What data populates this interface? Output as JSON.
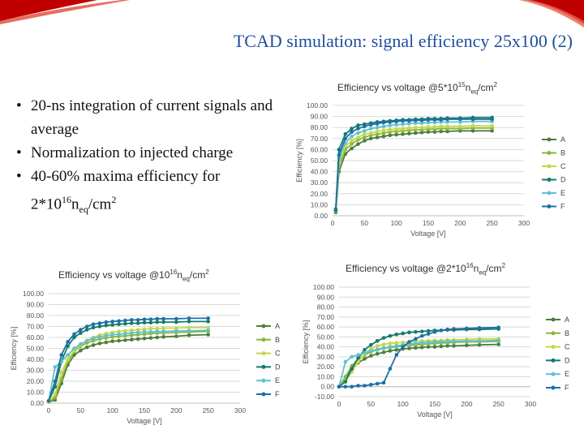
{
  "slide": {
    "title": "TCAD simulation: signal efficiency 25x100 (2)",
    "bullets": [
      {
        "pre": "20-ns integration of current signals and average",
        "exp": "",
        "sub": "",
        "post": ""
      },
      {
        "pre": "Normalization to injected charge",
        "exp": "",
        "sub": "",
        "post": ""
      },
      {
        "pre": "40-60% maxima efficiency for",
        "br": true,
        "pre2": "2*10",
        "exp": "16",
        "mid": "n",
        "sub": "eq",
        "post": "/cm",
        "exp2": "2"
      }
    ]
  },
  "colors": {
    "A": "#4e7d3a",
    "B": "#8db63a",
    "C": "#c5d84a",
    "D": "#137a6e",
    "E": "#5fc1d1",
    "F": "#1f6fa5"
  },
  "chart_data": [
    {
      "type": "line",
      "title": {
        "pre": "Efficiency vs voltage @5*10",
        "exp": "15",
        "mid": "n",
        "sub": "eq",
        "post": "/cm",
        "exp2": "2"
      },
      "xlabel": "Voltage [V]",
      "ylabel": "Efficiency [%]",
      "xlim": [
        0,
        300
      ],
      "ylim": [
        0,
        100
      ],
      "xticks": [
        "0",
        "50",
        "100",
        "150",
        "200",
        "250",
        "300"
      ],
      "yticks": [
        "0.00",
        "10.00",
        "20.00",
        "30.00",
        "40.00",
        "50.00",
        "60.00",
        "70.00",
        "80.00",
        "90.00",
        "100.00"
      ],
      "x": [
        5,
        10,
        20,
        30,
        40,
        50,
        60,
        70,
        80,
        90,
        100,
        110,
        120,
        130,
        140,
        150,
        160,
        170,
        180,
        200,
        220,
        250
      ],
      "series": [
        {
          "name": "A",
          "values": [
            3,
            40,
            56,
            61,
            65,
            68,
            70,
            71,
            72,
            73,
            73.5,
            74,
            74.5,
            75,
            75.5,
            76,
            76,
            76.5,
            76.5,
            77,
            77,
            77
          ]
        },
        {
          "name": "B",
          "values": [
            4,
            45,
            60,
            65,
            69,
            71,
            73,
            74,
            75,
            76,
            76.5,
            77,
            77.5,
            78,
            78,
            78.5,
            78.5,
            79,
            79,
            79,
            79.5,
            79.5
          ]
        },
        {
          "name": "C",
          "values": [
            5,
            48,
            63,
            68,
            71,
            74,
            75,
            76.5,
            77.5,
            78,
            78.5,
            79,
            79.5,
            80,
            80,
            80.5,
            80.5,
            81,
            81,
            81,
            81.5,
            81.5
          ]
        },
        {
          "name": "D",
          "values": [
            6,
            60,
            74,
            79,
            82,
            83,
            84,
            85,
            85.5,
            86,
            86.5,
            87,
            87,
            87.5,
            87.5,
            88,
            88,
            88,
            88.5,
            88.5,
            89,
            89
          ]
        },
        {
          "name": "E",
          "values": [
            5,
            52,
            66,
            72,
            75,
            77,
            79,
            80,
            81,
            82,
            82.5,
            83,
            83.5,
            84,
            84,
            84.5,
            84.5,
            85,
            85,
            85,
            85.5,
            85.5
          ]
        },
        {
          "name": "F",
          "values": [
            5,
            55,
            70,
            76,
            79,
            81,
            82.5,
            83.5,
            84.5,
            85,
            85.5,
            86,
            86,
            86.5,
            86.5,
            87,
            87,
            87,
            87.5,
            87.5,
            87.5,
            87.5
          ]
        }
      ]
    },
    {
      "type": "line",
      "title": {
        "pre": "Efficiency vs voltage @10",
        "exp": "16",
        "mid": "n",
        "sub": "eq",
        "post": "/cm",
        "exp2": "2"
      },
      "xlabel": "Voltage [V]",
      "ylabel": "Efficiency [%]",
      "xlim": [
        0,
        300
      ],
      "ylim": [
        0,
        100
      ],
      "xticks": [
        "0",
        "50",
        "100",
        "150",
        "200",
        "250",
        "300"
      ],
      "yticks": [
        "0.00",
        "10.00",
        "20.00",
        "30.00",
        "40.00",
        "50.00",
        "60.00",
        "70.00",
        "80.00",
        "90.00",
        "100.00"
      ],
      "x": [
        0,
        10,
        20,
        30,
        40,
        50,
        60,
        70,
        80,
        90,
        100,
        110,
        120,
        130,
        140,
        150,
        160,
        170,
        180,
        200,
        220,
        250
      ],
      "series": [
        {
          "name": "A",
          "values": [
            1,
            3,
            18,
            35,
            44,
            48,
            51,
            53,
            54.5,
            55.5,
            56.5,
            57,
            57.5,
            58,
            58.5,
            59,
            59.5,
            60,
            60.5,
            61,
            62,
            62.5
          ]
        },
        {
          "name": "B",
          "values": [
            1,
            5,
            22,
            38,
            47,
            52,
            55,
            57,
            58.5,
            59.5,
            60.5,
            61,
            61.5,
            62,
            62.5,
            63,
            63.5,
            64,
            64,
            64.5,
            65,
            65.5
          ]
        },
        {
          "name": "C",
          "values": [
            1,
            8,
            28,
            40,
            48,
            53,
            57,
            60,
            62,
            63.5,
            64.5,
            65.5,
            66,
            66.5,
            67,
            67.5,
            68,
            68,
            68.5,
            68.5,
            69,
            69
          ]
        },
        {
          "name": "D",
          "values": [
            2,
            15,
            38,
            52,
            60,
            64,
            67,
            69,
            70,
            71,
            71.5,
            72,
            72.5,
            73,
            73,
            73.5,
            73.5,
            74,
            74,
            74,
            74.5,
            74.5
          ]
        },
        {
          "name": "E",
          "values": [
            2,
            33,
            38,
            44,
            50,
            54,
            57,
            59,
            60.5,
            61.5,
            62.5,
            63,
            63.5,
            64,
            64.5,
            65,
            65,
            65.5,
            65.5,
            66,
            66,
            66.5
          ]
        },
        {
          "name": "F",
          "values": [
            2,
            20,
            44,
            56,
            63,
            67,
            70,
            72,
            73,
            74,
            74.5,
            75,
            75.5,
            76,
            76,
            76.5,
            76.5,
            77,
            77,
            77,
            77.5,
            77.5
          ]
        }
      ]
    },
    {
      "type": "line",
      "title": {
        "pre": "Efficiency vs voltage @2*10",
        "exp": "16",
        "mid": "n",
        "sub": "eq",
        "post": "/cm",
        "exp2": "2"
      },
      "xlabel": "Voltage [V]",
      "ylabel": "Efficiency [%]",
      "xlim": [
        0,
        300
      ],
      "ylim": [
        -10,
        100
      ],
      "xticks": [
        "0",
        "50",
        "100",
        "150",
        "200",
        "250",
        "300"
      ],
      "yticks": [
        "-10.00",
        "0.00",
        "10.00",
        "20.00",
        "30.00",
        "40.00",
        "50.00",
        "60.00",
        "70.00",
        "80.00",
        "90.00",
        "100.00"
      ],
      "x": [
        0,
        10,
        20,
        30,
        40,
        50,
        60,
        70,
        80,
        90,
        100,
        110,
        120,
        130,
        140,
        150,
        160,
        170,
        180,
        200,
        220,
        250
      ],
      "series": [
        {
          "name": "A",
          "values": [
            0,
            8,
            18,
            24,
            28,
            31,
            33,
            34.5,
            36,
            37,
            38,
            38.5,
            39,
            39.5,
            40,
            40,
            40.5,
            41,
            41,
            41.5,
            42,
            42.5
          ]
        },
        {
          "name": "B",
          "values": [
            0,
            10,
            21,
            28,
            32,
            35,
            37,
            38.5,
            39.5,
            40,
            41,
            41.5,
            42,
            42.5,
            43,
            43.5,
            44,
            44,
            44.5,
            45,
            45,
            45.5
          ]
        },
        {
          "name": "C",
          "values": [
            0,
            6,
            15,
            25,
            33,
            38,
            41,
            42.5,
            43.5,
            44,
            44.5,
            45,
            45.5,
            46,
            46,
            46.5,
            46.5,
            47,
            47,
            47.5,
            48,
            48
          ]
        },
        {
          "name": "D",
          "values": [
            0,
            5,
            18,
            29,
            37,
            42,
            46,
            49,
            51,
            52.5,
            53.5,
            54.5,
            55,
            55.5,
            56,
            56.5,
            56.5,
            57,
            57,
            57.5,
            57.5,
            58
          ]
        },
        {
          "name": "E",
          "values": [
            0,
            25,
            30,
            32,
            34,
            36,
            37.5,
            39,
            40,
            41,
            42,
            43,
            43.5,
            44,
            44.5,
            45,
            45,
            45.5,
            45.5,
            46,
            46,
            46.5
          ]
        },
        {
          "name": "F",
          "values": [
            0,
            0,
            0,
            1,
            1,
            2,
            3,
            4,
            18,
            32,
            40,
            45,
            48,
            51,
            53,
            55,
            56.5,
            57.5,
            58,
            58.5,
            59,
            59.5
          ]
        }
      ]
    }
  ]
}
